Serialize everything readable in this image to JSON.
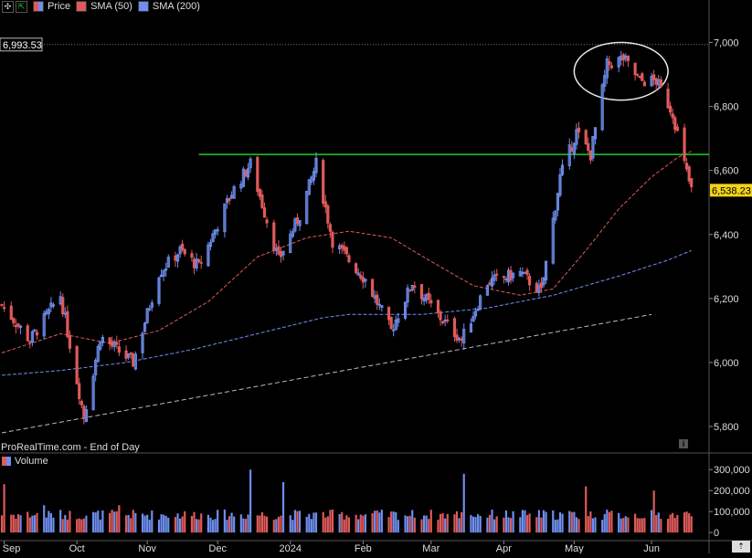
{
  "legend": {
    "price_label": "Price",
    "sma50_label": "SMA (50)",
    "sma200_label": "SMA (200)",
    "sma50_color": "#e05a5a",
    "sma200_color": "#6f8ff0",
    "icons": [
      "settings-icon",
      "expand-icon"
    ]
  },
  "watermark": "ProRealTime.com - End of Day",
  "volume_label": "Volume",
  "last_price_badge": "6,538.23",
  "high_marker_label": "6,993.53",
  "colors": {
    "up": "#6f8ff0",
    "down": "#e05a5a",
    "support_line": "#22cc22",
    "trend_line": "#bbbbbb",
    "badge": "#f2d21a"
  },
  "chart_data": [
    {
      "type": "candlestick",
      "title": "",
      "ylim": [
        5720,
        7090
      ],
      "y_ticks": [
        "7,000",
        "6,800",
        "6,600",
        "6,400",
        "6,200",
        "6,000",
        "5,800"
      ],
      "y_tick_values": [
        7000,
        6800,
        6600,
        6400,
        6200,
        6000,
        5800
      ],
      "x_ticks": [
        "Sep",
        "Oct",
        "Nov",
        "Dec",
        "2024",
        "Feb",
        "Mar",
        "Apr",
        "May",
        "Jun"
      ],
      "x_range": [
        "2023-08-31",
        "2024-06-24"
      ],
      "key_closes": [
        {
          "date": "2023-08-31",
          "close": 6180
        },
        {
          "date": "2023-09-12",
          "close": 6070
        },
        {
          "date": "2023-09-25",
          "close": 6210
        },
        {
          "date": "2023-10-05",
          "close": 5830
        },
        {
          "date": "2023-10-12",
          "close": 6080
        },
        {
          "date": "2023-10-26",
          "close": 6000
        },
        {
          "date": "2023-11-06",
          "close": 6280
        },
        {
          "date": "2023-11-15",
          "close": 6350
        },
        {
          "date": "2023-11-23",
          "close": 6300
        },
        {
          "date": "2023-12-07",
          "close": 6530
        },
        {
          "date": "2023-12-15",
          "close": 6620
        },
        {
          "date": "2023-12-27",
          "close": 6320
        },
        {
          "date": "2024-01-05",
          "close": 6460
        },
        {
          "date": "2024-01-12",
          "close": 6620
        },
        {
          "date": "2024-01-19",
          "close": 6380
        },
        {
          "date": "2024-02-02",
          "close": 6260
        },
        {
          "date": "2024-02-13",
          "close": 6100
        },
        {
          "date": "2024-02-22",
          "close": 6250
        },
        {
          "date": "2024-03-05",
          "close": 6140
        },
        {
          "date": "2024-03-14",
          "close": 6070
        },
        {
          "date": "2024-03-25",
          "close": 6250
        },
        {
          "date": "2024-04-08",
          "close": 6280
        },
        {
          "date": "2024-04-17",
          "close": 6220
        },
        {
          "date": "2024-04-25",
          "close": 6580
        },
        {
          "date": "2024-05-02",
          "close": 6720
        },
        {
          "date": "2024-05-08",
          "close": 6650
        },
        {
          "date": "2024-05-15",
          "close": 6930
        },
        {
          "date": "2024-05-22",
          "close": 6950
        },
        {
          "date": "2024-05-29",
          "close": 6880
        },
        {
          "date": "2024-06-05",
          "close": 6880
        },
        {
          "date": "2024-06-12",
          "close": 6780
        },
        {
          "date": "2024-06-17",
          "close": 6620
        },
        {
          "date": "2024-06-20",
          "close": 6538.23
        }
      ],
      "sma50": [
        {
          "date": "2023-08-31",
          "value": 6030
        },
        {
          "date": "2023-09-25",
          "value": 6090
        },
        {
          "date": "2023-10-16",
          "value": 6060
        },
        {
          "date": "2023-11-06",
          "value": 6100
        },
        {
          "date": "2023-11-27",
          "value": 6190
        },
        {
          "date": "2023-12-18",
          "value": 6330
        },
        {
          "date": "2024-01-08",
          "value": 6390
        },
        {
          "date": "2024-01-26",
          "value": 6410
        },
        {
          "date": "2024-02-13",
          "value": 6390
        },
        {
          "date": "2024-02-29",
          "value": 6320
        },
        {
          "date": "2024-03-19",
          "value": 6240
        },
        {
          "date": "2024-04-08",
          "value": 6210
        },
        {
          "date": "2024-04-22",
          "value": 6230
        },
        {
          "date": "2024-05-06",
          "value": 6350
        },
        {
          "date": "2024-05-20",
          "value": 6480
        },
        {
          "date": "2024-06-03",
          "value": 6580
        },
        {
          "date": "2024-06-14",
          "value": 6640
        },
        {
          "date": "2024-06-20",
          "value": 6660
        }
      ],
      "sma200": [
        {
          "date": "2023-08-31",
          "value": 5960
        },
        {
          "date": "2023-09-25",
          "value": 5975
        },
        {
          "date": "2023-10-23",
          "value": 6000
        },
        {
          "date": "2023-11-20",
          "value": 6040
        },
        {
          "date": "2023-12-18",
          "value": 6090
        },
        {
          "date": "2024-01-15",
          "value": 6140
        },
        {
          "date": "2024-01-26",
          "value": 6150
        },
        {
          "date": "2024-02-26",
          "value": 6150
        },
        {
          "date": "2024-03-25",
          "value": 6170
        },
        {
          "date": "2024-04-22",
          "value": 6210
        },
        {
          "date": "2024-05-20",
          "value": 6270
        },
        {
          "date": "2024-06-10",
          "value": 6320
        },
        {
          "date": "2024-06-20",
          "value": 6350
        }
      ],
      "support_level": 6650,
      "support_from": "2023-11-23",
      "trend_line": [
        {
          "date": "2023-08-31",
          "value": 5780
        },
        {
          "date": "2024-06-03",
          "value": 6150
        }
      ],
      "high_marker": 6993.53,
      "highlight_ellipse": {
        "from": "2024-05-01",
        "to": "2024-06-10",
        "low": 6820,
        "high": 7000
      }
    },
    {
      "type": "bar",
      "title": "",
      "ylim": [
        -30000,
        340000
      ],
      "y_ticks": [
        "300,000",
        "200,000",
        "100,000",
        "0"
      ],
      "y_tick_values": [
        300000,
        200000,
        100000,
        0
      ],
      "spikes": [
        {
          "date": "2023-09-01",
          "value": 230000
        },
        {
          "date": "2023-09-18",
          "value": 130000
        },
        {
          "date": "2023-10-20",
          "value": 130000
        },
        {
          "date": "2023-12-15",
          "value": 300000
        },
        {
          "date": "2023-12-29",
          "value": 240000
        },
        {
          "date": "2024-03-15",
          "value": 280000
        },
        {
          "date": "2024-05-06",
          "value": 220000
        },
        {
          "date": "2024-06-04",
          "value": 200000
        }
      ],
      "typical_range": [
        60000,
        110000
      ]
    }
  ]
}
